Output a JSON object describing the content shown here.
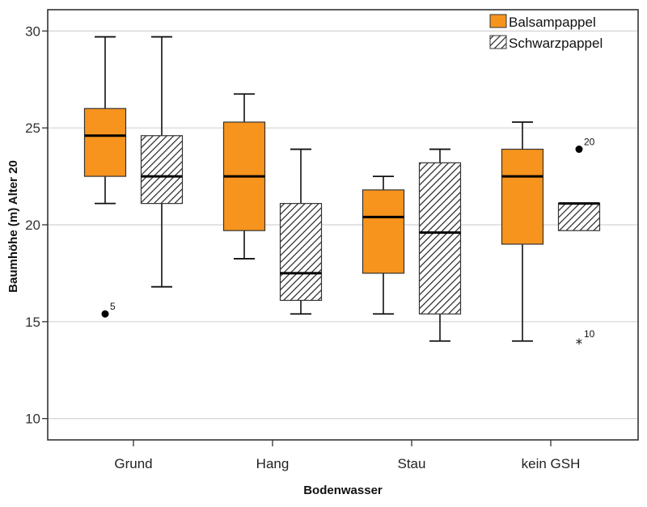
{
  "chart_data": {
    "type": "boxplot",
    "title": "",
    "xlabel": "Bodenwasser",
    "ylabel": "Baumhöhe (m) Alter 20",
    "ylim": [
      8.9,
      31.1
    ],
    "yticks": [
      10,
      15,
      20,
      25,
      30
    ],
    "grid": "horizontal",
    "legend_position": "top-right",
    "categories": [
      "Grund",
      "Hang",
      "Stau",
      "kein GSH"
    ],
    "series": [
      {
        "name": "Balsampappel",
        "fill": "orange",
        "color": "#F7941D",
        "boxes": [
          {
            "category": "Grund",
            "whisker_low": 21.1,
            "q1": 22.5,
            "median": 24.6,
            "q3": 26.0,
            "whisker_high": 29.7
          },
          {
            "category": "Hang",
            "whisker_low": 18.25,
            "q1": 19.7,
            "median": 22.5,
            "q3": 25.3,
            "whisker_high": 26.75
          },
          {
            "category": "Stau",
            "whisker_low": 15.4,
            "q1": 17.5,
            "median": 20.4,
            "q3": 21.8,
            "whisker_high": 22.5
          },
          {
            "category": "kein GSH",
            "whisker_low": 14.0,
            "q1": 19.0,
            "median": 22.5,
            "q3": 23.9,
            "whisker_high": 25.3
          }
        ],
        "outliers": [
          {
            "category": "Grund",
            "value": 15.4,
            "label": "5",
            "marker": "circle"
          }
        ]
      },
      {
        "name": "Schwarzpappel",
        "fill": "hatched",
        "color": "#333333",
        "boxes": [
          {
            "category": "Grund",
            "whisker_low": 16.8,
            "q1": 21.1,
            "median": 22.5,
            "q3": 24.6,
            "whisker_high": 29.7
          },
          {
            "category": "Hang",
            "whisker_low": 15.4,
            "q1": 16.1,
            "median": 17.5,
            "q3": 21.1,
            "whisker_high": 23.9
          },
          {
            "category": "Stau",
            "whisker_low": 14.0,
            "q1": 15.4,
            "median": 19.6,
            "q3": 23.2,
            "whisker_high": 23.9
          },
          {
            "category": "kein GSH",
            "whisker_low": null,
            "q1": 19.7,
            "median": 21.1,
            "q3": 21.1,
            "whisker_high": null
          }
        ],
        "outliers": [
          {
            "category": "kein GSH",
            "value": 23.9,
            "label": "20",
            "marker": "circle"
          },
          {
            "category": "kein GSH",
            "value": 14.0,
            "label": "10",
            "marker": "star"
          }
        ]
      }
    ],
    "legend": [
      {
        "label": "Balsampappel",
        "swatch": "orange"
      },
      {
        "label": "Schwarzpappel",
        "swatch": "hatched"
      }
    ]
  }
}
